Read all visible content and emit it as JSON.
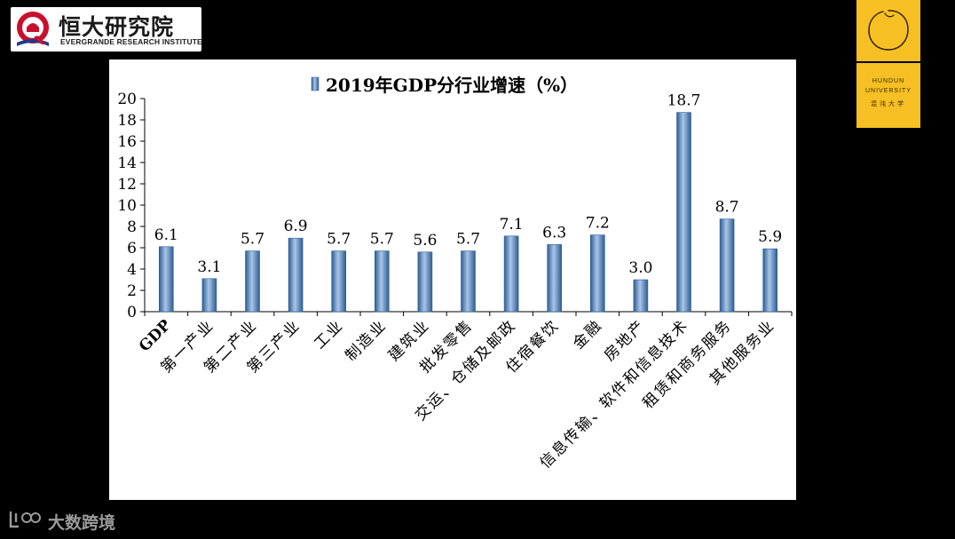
{
  "header": {
    "logo_cn": "恒大研究院",
    "logo_en": "EVERGRANDE RESEARCH INSTITUTE"
  },
  "badge": {
    "line1": "HUNDUN",
    "line2": "UNIVERSITY",
    "cn": "混沌大学",
    "color": "#f6bf23"
  },
  "watermark": {
    "text": "大数跨境"
  },
  "colors": {
    "bar_fill": "#4f81bd",
    "bar_edge": "#2e5d91",
    "bar_highlight": "#a9c6e8"
  },
  "chart_data": {
    "type": "bar",
    "legend": "2019年GDP分行业增速（%）",
    "legend_position": "top-center",
    "categories": [
      "GDP",
      "第一产业",
      "第二产业",
      "第三产业",
      "工业",
      "制造业",
      "建筑业",
      "批发零售",
      "交运、仓储及邮政",
      "住宿餐饮",
      "金融",
      "房地产",
      "信息传输、软件和信息技术",
      "租赁和商务服务",
      "其他服务业"
    ],
    "values": [
      6.1,
      3.1,
      5.7,
      6.9,
      5.7,
      5.7,
      5.6,
      5.7,
      7.1,
      6.3,
      7.2,
      3.0,
      18.7,
      8.7,
      5.9
    ],
    "value_labels": [
      "6.1",
      "3.1",
      "5.7",
      "6.9",
      "5.7",
      "5.7",
      "5.6",
      "5.7",
      "7.1",
      "6.3",
      "7.2",
      "3.0",
      "18.7",
      "8.7",
      "5.9"
    ],
    "ylim": [
      0,
      20
    ],
    "yticks": [
      "0",
      "2",
      "4",
      "6",
      "8",
      "10",
      "12",
      "14",
      "16",
      "18",
      "20"
    ],
    "grid": false
  }
}
